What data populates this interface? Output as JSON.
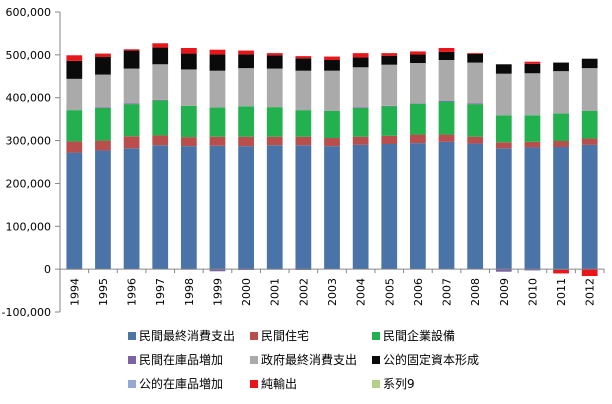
{
  "chart_data": {
    "type": "bar",
    "stacked": true,
    "title": "",
    "xlabel": "",
    "ylabel": "",
    "ylim": [
      -100000,
      600000
    ],
    "yticks": [
      -100000,
      0,
      100000,
      200000,
      300000,
      400000,
      500000,
      600000
    ],
    "ytick_labels": [
      "-100,000",
      "0",
      "100,000",
      "200,000",
      "300,000",
      "400,000",
      "500,000",
      "600,000"
    ],
    "grid": false,
    "legend_position": "bottom",
    "categories": [
      "1994",
      "1995",
      "1996",
      "1997",
      "1998",
      "1999",
      "2000",
      "2001",
      "2002",
      "2003",
      "2004",
      "2005",
      "2006",
      "2007",
      "2008",
      "2009",
      "2010",
      "2011",
      "2012"
    ],
    "series": [
      {
        "name": "民間最終消費支出",
        "color": "#4a74a8",
        "values": [
          272000,
          277000,
          282000,
          289000,
          287000,
          288000,
          287000,
          289000,
          289000,
          287000,
          290000,
          292000,
          294000,
          297000,
          293000,
          282000,
          284000,
          285000,
          290000
        ]
      },
      {
        "name": "民間住宅",
        "color": "#b84f4c",
        "values": [
          26000,
          23000,
          28000,
          23000,
          21000,
          21000,
          22000,
          20000,
          20000,
          19000,
          19000,
          19000,
          20000,
          17000,
          16000,
          14000,
          13000,
          14000,
          15000
        ]
      },
      {
        "name": "民間企業設備",
        "color": "#23b04e",
        "values": [
          73000,
          76000,
          75000,
          82000,
          73000,
          68000,
          71000,
          69000,
          62000,
          63000,
          67000,
          69000,
          72000,
          77000,
          76000,
          63000,
          62000,
          64000,
          64000
        ]
      },
      {
        "name": "民間在庫品増加",
        "color": "#7a62a3",
        "values": [
          -1000,
          1000,
          2000,
          1000,
          -1000,
          -5000,
          -2000,
          -1000,
          -2000,
          0,
          1000,
          1000,
          1000,
          2000,
          2000,
          -6000,
          -3000,
          -2000,
          0
        ]
      },
      {
        "name": "政府最終消費支出",
        "color": "#aaaaaa",
        "values": [
          73000,
          77000,
          81000,
          83000,
          85000,
          86000,
          89000,
          90000,
          92000,
          94000,
          94000,
          96000,
          94000,
          95000,
          95000,
          97000,
          98000,
          99000,
          100000
        ]
      },
      {
        "name": "公的固定資本形成",
        "color": "#0a0a0a",
        "values": [
          42000,
          41000,
          42000,
          39000,
          37000,
          38000,
          32000,
          31000,
          29000,
          25000,
          23000,
          21000,
          20000,
          19000,
          20000,
          22000,
          22000,
          20000,
          22000
        ]
      },
      {
        "name": "公的在庫品増加",
        "color": "#93a9d4",
        "values": [
          0,
          0,
          0,
          0,
          0,
          0,
          0,
          0,
          0,
          0,
          0,
          0,
          0,
          0,
          0,
          0,
          0,
          0,
          0
        ]
      },
      {
        "name": "純輸出",
        "color": "#e8151b",
        "values": [
          13000,
          8000,
          3000,
          10000,
          13000,
          11000,
          9000,
          5000,
          5000,
          8000,
          10000,
          6000,
          7000,
          9000,
          2000,
          0,
          5000,
          -8000,
          -16000
        ]
      },
      {
        "name": "系列9",
        "color": "#b4cf8a",
        "values": [
          0,
          0,
          0,
          0,
          0,
          0,
          0,
          0,
          0,
          0,
          0,
          0,
          0,
          0,
          0,
          0,
          0,
          0,
          0
        ]
      }
    ]
  }
}
